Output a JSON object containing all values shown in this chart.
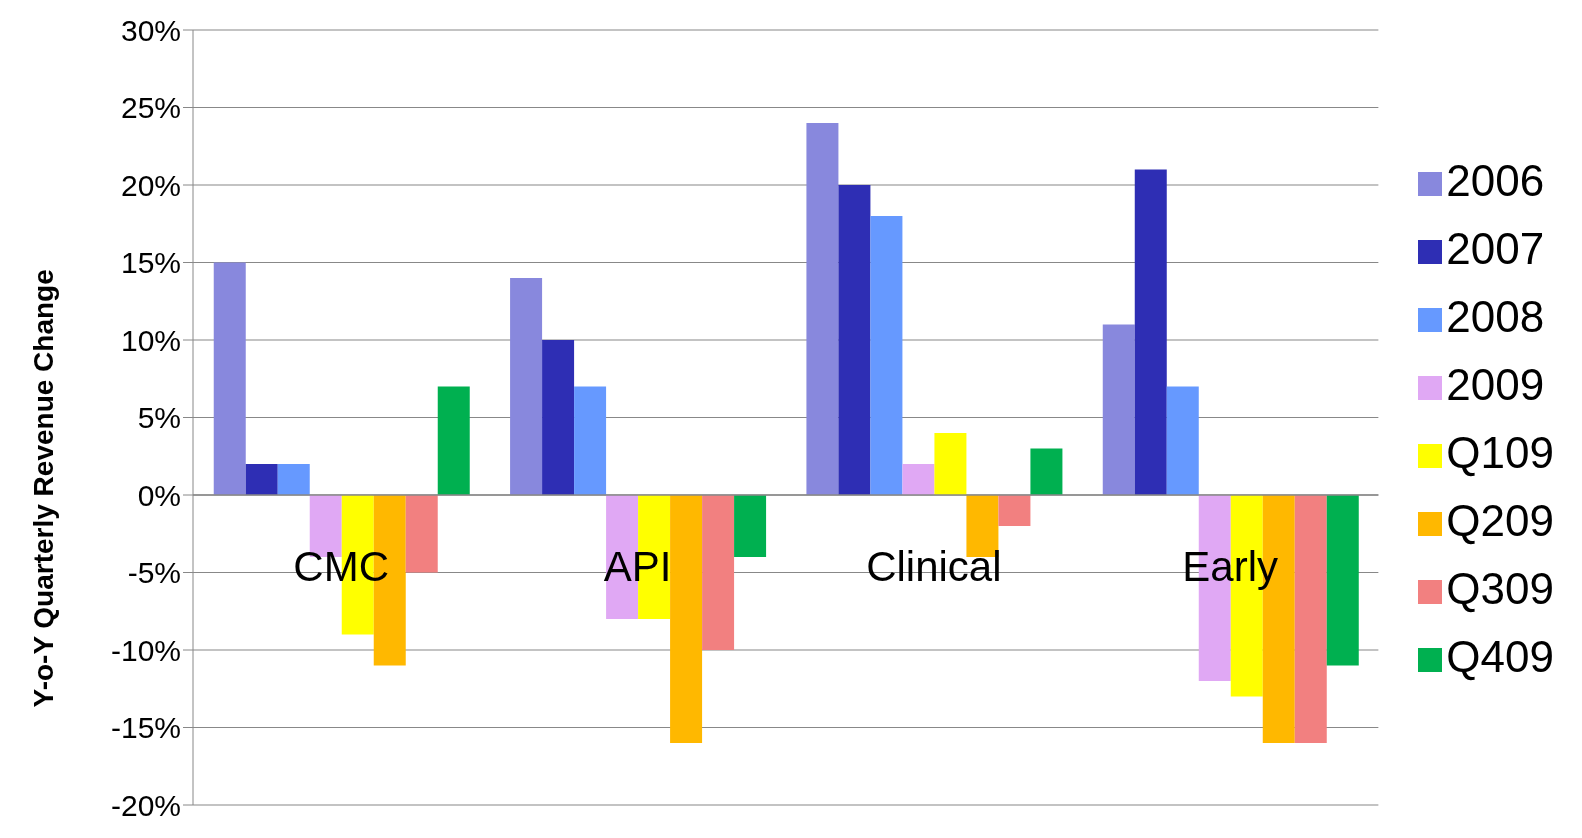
{
  "chart_data": {
    "type": "bar",
    "ylabel": "Y-o-Y Quarterly Revenue Change",
    "categories": [
      "CMC",
      "API",
      "Clinical",
      "Early"
    ],
    "series": [
      {
        "name": "2006",
        "color": "#8888dd",
        "values": [
          15,
          14,
          24,
          11
        ]
      },
      {
        "name": "2007",
        "color": "#2e2eb4",
        "values": [
          2,
          10,
          20,
          21
        ]
      },
      {
        "name": "2008",
        "color": "#6699ff",
        "values": [
          2,
          7,
          18,
          7
        ]
      },
      {
        "name": "2009",
        "color": "#e0a8f4",
        "values": [
          -4,
          -8,
          2,
          -12
        ]
      },
      {
        "name": "Q109",
        "color": "#ffff00",
        "values": [
          -9,
          -8,
          4,
          -13
        ]
      },
      {
        "name": "Q209",
        "color": "#ffb800",
        "values": [
          -11,
          -16,
          -4,
          -16
        ]
      },
      {
        "name": "Q309",
        "color": "#f28080",
        "values": [
          -5,
          -10,
          -2,
          -16
        ]
      },
      {
        "name": "Q409",
        "color": "#00b050",
        "values": [
          7,
          -4,
          3,
          -11
        ]
      }
    ],
    "ylim": [
      -20,
      30
    ],
    "yticks": [
      {
        "value": -20,
        "label": "-20%"
      },
      {
        "value": -15,
        "label": "-15%"
      },
      {
        "value": -10,
        "label": "-10%"
      },
      {
        "value": -5,
        "label": "-5%"
      },
      {
        "value": 0,
        "label": "0%"
      },
      {
        "value": 5,
        "label": "5%"
      },
      {
        "value": 10,
        "label": "10%"
      },
      {
        "value": 15,
        "label": "15%"
      },
      {
        "value": 20,
        "label": "20%"
      },
      {
        "value": 25,
        "label": "25%"
      },
      {
        "value": 30,
        "label": "30%"
      }
    ],
    "grid": "y",
    "legend": "right"
  }
}
